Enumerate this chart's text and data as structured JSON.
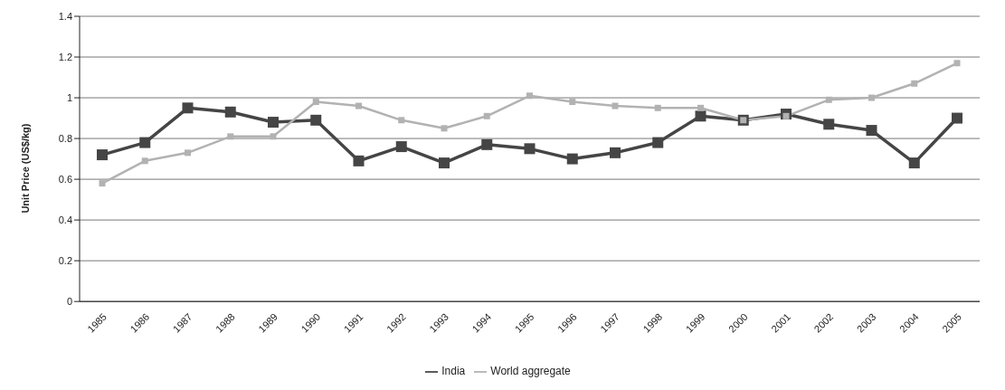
{
  "chart_data": {
    "type": "line",
    "ylabel": "Unit Price (US$/kg)",
    "categories": [
      "1985",
      "1986",
      "1987",
      "1988",
      "1989",
      "1990",
      "1991",
      "1992",
      "1993",
      "1994",
      "1995",
      "1996",
      "1997",
      "1998",
      "1999",
      "2000",
      "2001",
      "2002",
      "2003",
      "2004",
      "2005"
    ],
    "series": [
      {
        "name": "India",
        "color": "#454545",
        "values": [
          0.72,
          0.78,
          0.95,
          0.93,
          0.88,
          0.89,
          0.69,
          0.76,
          0.68,
          0.77,
          0.75,
          0.7,
          0.73,
          0.78,
          0.91,
          0.89,
          0.92,
          0.87,
          0.84,
          0.68,
          0.9
        ]
      },
      {
        "name": "World aggregate",
        "color": "#b2b2b2",
        "values": [
          0.58,
          0.69,
          0.73,
          0.81,
          0.81,
          0.98,
          0.96,
          0.89,
          0.85,
          0.91,
          1.01,
          0.98,
          0.96,
          0.95,
          0.95,
          0.89,
          0.91,
          0.99,
          1.0,
          1.07,
          1.17
        ]
      }
    ],
    "ylim": [
      0,
      1.4
    ],
    "yticks": [
      0,
      0.2,
      0.4,
      0.6,
      0.8,
      1,
      1.2,
      1.4
    ],
    "grid": "y",
    "legend": "bottom",
    "marker": "square",
    "line_style": "solid"
  }
}
